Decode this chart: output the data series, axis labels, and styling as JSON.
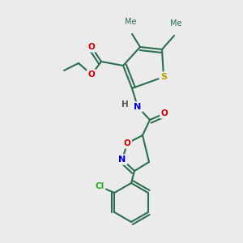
{
  "bg_color": "#ebebeb",
  "bond_color": "#2d6e50",
  "atom_colors": {
    "S": "#b8a000",
    "O": "#cc0000",
    "N": "#0000cc",
    "Cl": "#22aa22",
    "H": "#555555"
  },
  "figsize": [
    3.0,
    3.0
  ],
  "dpi": 100
}
